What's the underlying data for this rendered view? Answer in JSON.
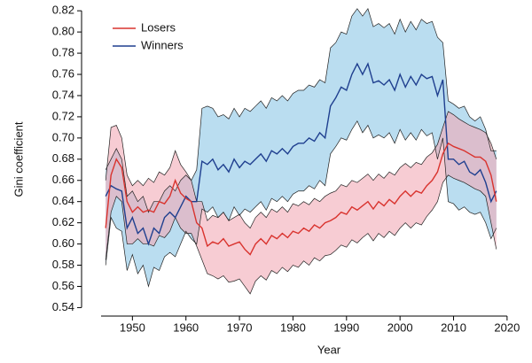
{
  "chart_data": {
    "type": "line-band",
    "xlabel": "Year",
    "ylabel": "Gini coefficient",
    "xlim": [
      1940.5,
      2023
    ],
    "xticks": [
      1950,
      1960,
      1970,
      1980,
      1990,
      2000,
      2010,
      2020
    ],
    "ylim": [
      0.532,
      0.826
    ],
    "yticks": [
      0.54,
      0.56,
      0.58,
      {
        "value": 0.6,
        "label": "0.60"
      },
      0.62,
      0.64,
      0.66,
      0.68,
      {
        "value": 0.7,
        "label": "0.70"
      },
      0.72,
      0.74,
      0.76,
      0.78,
      {
        "value": 0.8,
        "label": "0.80"
      },
      0.82
    ],
    "legend": "upper left",
    "x": [
      1945,
      1946,
      1947,
      1948,
      1949,
      1950,
      1951,
      1952,
      1953,
      1954,
      1955,
      1956,
      1957,
      1958,
      1959,
      1960,
      1961,
      1962,
      1963,
      1964,
      1965,
      1966,
      1967,
      1968,
      1969,
      1970,
      1971,
      1972,
      1973,
      1974,
      1975,
      1976,
      1977,
      1978,
      1979,
      1980,
      1981,
      1982,
      1983,
      1984,
      1985,
      1986,
      1987,
      1988,
      1989,
      1990,
      1991,
      1992,
      1993,
      1994,
      1995,
      1996,
      1997,
      1998,
      1999,
      2000,
      2001,
      2002,
      2003,
      2004,
      2005,
      2006,
      2007,
      2008,
      2009,
      2010,
      2011,
      2012,
      2013,
      2014,
      2015,
      2016,
      2017,
      2018
    ],
    "series": [
      {
        "name": "Winners",
        "color": "#1f3f8f",
        "band_color": "#8cc6e6",
        "values": [
          0.645,
          0.655,
          0.652,
          0.65,
          0.615,
          0.625,
          0.61,
          0.615,
          0.6,
          0.615,
          0.61,
          0.625,
          0.63,
          0.625,
          0.635,
          0.645,
          0.64,
          0.64,
          0.678,
          0.675,
          0.68,
          0.67,
          0.675,
          0.668,
          0.68,
          0.672,
          0.678,
          0.675,
          0.68,
          0.685,
          0.678,
          0.688,
          0.685,
          0.69,
          0.685,
          0.692,
          0.695,
          0.695,
          0.7,
          0.697,
          0.705,
          0.7,
          0.73,
          0.738,
          0.748,
          0.745,
          0.76,
          0.77,
          0.76,
          0.77,
          0.752,
          0.754,
          0.75,
          0.755,
          0.745,
          0.76,
          0.748,
          0.758,
          0.75,
          0.76,
          0.756,
          0.758,
          0.74,
          0.755,
          0.68,
          0.68,
          0.675,
          0.678,
          0.668,
          0.665,
          0.67,
          0.658,
          0.64,
          0.65
        ],
        "upper": [
          0.67,
          0.68,
          0.69,
          0.68,
          0.645,
          0.65,
          0.64,
          0.645,
          0.63,
          0.64,
          0.64,
          0.65,
          0.655,
          0.65,
          0.66,
          0.665,
          0.66,
          0.67,
          0.728,
          0.73,
          0.728,
          0.72,
          0.722,
          0.718,
          0.728,
          0.72,
          0.728,
          0.725,
          0.73,
          0.735,
          0.728,
          0.738,
          0.735,
          0.74,
          0.735,
          0.742,
          0.745,
          0.745,
          0.75,
          0.748,
          0.755,
          0.752,
          0.785,
          0.79,
          0.8,
          0.798,
          0.815,
          0.822,
          0.815,
          0.822,
          0.805,
          0.808,
          0.804,
          0.808,
          0.798,
          0.812,
          0.8,
          0.81,
          0.802,
          0.812,
          0.808,
          0.81,
          0.795,
          0.79,
          0.735,
          0.732,
          0.728,
          0.73,
          0.72,
          0.716,
          0.72,
          0.708,
          0.688,
          0.688
        ],
        "lower": [
          0.58,
          0.625,
          0.615,
          0.612,
          0.575,
          0.59,
          0.572,
          0.58,
          0.56,
          0.578,
          0.575,
          0.588,
          0.592,
          0.588,
          0.6,
          0.612,
          0.605,
          0.6,
          0.633,
          0.63,
          0.635,
          0.625,
          0.63,
          0.622,
          0.635,
          0.627,
          0.633,
          0.63,
          0.635,
          0.64,
          0.632,
          0.643,
          0.64,
          0.645,
          0.64,
          0.647,
          0.65,
          0.65,
          0.655,
          0.652,
          0.66,
          0.655,
          0.685,
          0.692,
          0.7,
          0.698,
          0.708,
          0.716,
          0.705,
          0.712,
          0.7,
          0.703,
          0.7,
          0.705,
          0.695,
          0.708,
          0.698,
          0.705,
          0.698,
          0.708,
          0.702,
          0.705,
          0.68,
          0.7,
          0.64,
          0.638,
          0.632,
          0.635,
          0.63,
          0.628,
          0.63,
          0.62,
          0.605,
          0.615
        ]
      },
      {
        "name": "Losers",
        "color": "#d9332e",
        "band_color": "#f2aab6",
        "values": [
          0.615,
          0.665,
          0.68,
          0.672,
          0.64,
          0.63,
          0.635,
          0.63,
          0.632,
          0.63,
          0.64,
          0.638,
          0.645,
          0.66,
          0.648,
          0.643,
          0.64,
          0.62,
          0.615,
          0.598,
          0.602,
          0.6,
          0.605,
          0.598,
          0.6,
          0.602,
          0.595,
          0.59,
          0.6,
          0.605,
          0.6,
          0.608,
          0.605,
          0.61,
          0.606,
          0.612,
          0.61,
          0.615,
          0.612,
          0.618,
          0.615,
          0.62,
          0.622,
          0.625,
          0.63,
          0.628,
          0.635,
          0.632,
          0.636,
          0.64,
          0.633,
          0.64,
          0.636,
          0.642,
          0.638,
          0.645,
          0.65,
          0.645,
          0.65,
          0.648,
          0.655,
          0.66,
          0.668,
          0.685,
          0.695,
          0.692,
          0.69,
          0.688,
          0.685,
          0.682,
          0.682,
          0.678,
          0.665,
          0.64
        ],
        "upper": [
          0.66,
          0.71,
          0.712,
          0.7,
          0.665,
          0.655,
          0.66,
          0.655,
          0.662,
          0.658,
          0.668,
          0.665,
          0.672,
          0.688,
          0.675,
          0.668,
          0.66,
          0.64,
          0.64,
          0.622,
          0.627,
          0.625,
          0.63,
          0.622,
          0.625,
          0.628,
          0.62,
          0.615,
          0.625,
          0.63,
          0.625,
          0.633,
          0.63,
          0.635,
          0.63,
          0.638,
          0.636,
          0.64,
          0.637,
          0.643,
          0.64,
          0.645,
          0.648,
          0.65,
          0.656,
          0.654,
          0.66,
          0.658,
          0.662,
          0.666,
          0.66,
          0.666,
          0.662,
          0.668,
          0.665,
          0.672,
          0.676,
          0.672,
          0.677,
          0.675,
          0.682,
          0.686,
          0.694,
          0.71,
          0.725,
          0.722,
          0.718,
          0.715,
          0.712,
          0.71,
          0.708,
          0.705,
          0.695,
          0.68
        ],
        "lower": [
          0.585,
          0.63,
          0.645,
          0.64,
          0.6,
          0.6,
          0.605,
          0.6,
          0.6,
          0.598,
          0.608,
          0.606,
          0.612,
          0.625,
          0.615,
          0.61,
          0.61,
          0.598,
          0.585,
          0.572,
          0.57,
          0.567,
          0.57,
          0.564,
          0.565,
          0.567,
          0.56,
          0.553,
          0.565,
          0.57,
          0.566,
          0.575,
          0.572,
          0.578,
          0.574,
          0.58,
          0.578,
          0.584,
          0.58,
          0.587,
          0.584,
          0.589,
          0.59,
          0.594,
          0.599,
          0.597,
          0.604,
          0.601,
          0.606,
          0.61,
          0.603,
          0.61,
          0.606,
          0.612,
          0.608,
          0.615,
          0.62,
          0.615,
          0.62,
          0.618,
          0.626,
          0.632,
          0.64,
          0.658,
          0.665,
          0.662,
          0.66,
          0.658,
          0.655,
          0.652,
          0.65,
          0.645,
          0.62,
          0.595
        ]
      }
    ]
  }
}
